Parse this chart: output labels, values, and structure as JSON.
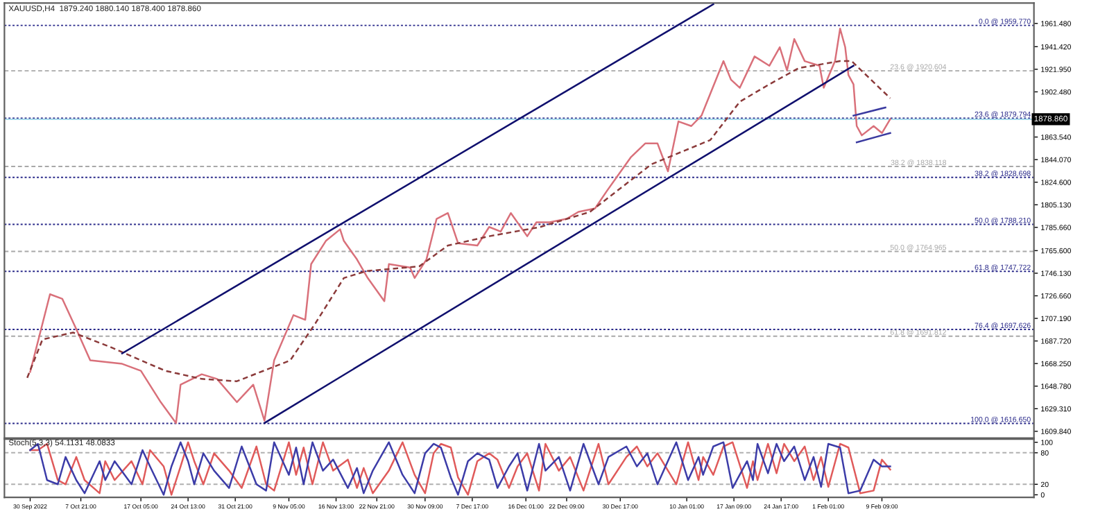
{
  "chart_data": [
    {
      "type": "line",
      "title": "XAUUSD,H4  1879.240 1880.140 1878.400 1878.860",
      "xlim": [
        "2022-09-26T00:00",
        "2023-03-05T00:00"
      ],
      "ylim": [
        1604,
        1979
      ],
      "tick_labels": "y",
      "yticks": [
        {
          "value": 1961.48,
          "label": "1961.480"
        },
        {
          "value": 1941.42,
          "label": "1941.420"
        },
        {
          "value": 1921.95,
          "label": "1921.950"
        },
        {
          "value": 1902.48,
          "label": "1902.480"
        },
        {
          "value": 1863.54,
          "label": "1863.540"
        },
        {
          "value": 1844.07,
          "label": "1844.070"
        },
        {
          "value": 1824.6,
          "label": "1824.600"
        },
        {
          "value": 1805.13,
          "label": "1805.130"
        },
        {
          "value": 1785.66,
          "label": "1785.660"
        },
        {
          "value": 1765.6,
          "label": "1765.600"
        },
        {
          "value": 1746.13,
          "label": "1746.130"
        },
        {
          "value": 1726.66,
          "label": "1726.660"
        },
        {
          "value": 1707.19,
          "label": "1707.190"
        },
        {
          "value": 1687.72,
          "label": "1687.720"
        },
        {
          "value": 1668.25,
          "label": "1668.250"
        },
        {
          "value": 1648.78,
          "label": "1648.780"
        },
        {
          "value": 1629.31,
          "label": "1629.310"
        },
        {
          "value": 1609.84,
          "label": "1609.840"
        }
      ],
      "series": [
        {
          "color": "#d9707a",
          "x": [
            "2022-09-30T00:00",
            "2022-10-03T02:00",
            "2022-10-05T00:00",
            "2022-10-07T04:00",
            "2022-10-09T08:00",
            "2022-10-14T07:00",
            "2022-10-17T05:00",
            "2022-10-20T07:00",
            "2022-10-22T16:00",
            "2022-10-23T09:00",
            "2022-10-26T16:00",
            "2022-10-29T01:00",
            "2022-11-01T03:00",
            "2022-11-03T16:00",
            "2022-11-05T10:00",
            "2022-11-06T22:00",
            "2022-11-09T22:00",
            "2022-11-11T18:00",
            "2022-11-12T16:00",
            "2022-11-14T23:00",
            "2022-11-17T04:00",
            "2022-11-17T18:00",
            "2022-11-19T19:00",
            "2022-11-21T11:00",
            "2022-11-24T01:00",
            "2022-11-24T18:00",
            "2022-11-28T01:00",
            "2022-11-28T18:00",
            "2022-11-30T14:00",
            "2022-12-02T04:00",
            "2022-12-03T22:00",
            "2022-12-05T12:00",
            "2022-12-08T12:00",
            "2022-12-10T08:00",
            "2022-12-12T03:00",
            "2022-12-13T17:00",
            "2022-12-16T06:00",
            "2022-12-17T16:00",
            "2022-12-19T17:00",
            "2022-12-22T09:00",
            "2022-12-24T05:00",
            "2022-12-26T19:00",
            "2022-12-28T15:00",
            "2023-01-01T08:00",
            "2023-01-03T14:00",
            "2023-01-05T12:00",
            "2023-01-07T03:00",
            "2023-01-08T18:00",
            "2023-01-10T18:00",
            "2023-01-12T08:00",
            "2023-01-13T17:00",
            "2023-01-15T18:00",
            "2023-01-16T22:00",
            "2023-01-18T07:00",
            "2023-01-20T14:00",
            "2023-01-22T21:00",
            "2023-01-24T12:00",
            "2023-01-25T15:00",
            "2023-01-26T18:00",
            "2023-01-28T09:00",
            "2023-01-30T16:00",
            "2023-01-31T08:00",
            "2023-02-02T02:00",
            "2023-02-02T21:00",
            "2023-02-03T16:00",
            "2023-02-04T04:00",
            "2023-02-04T23:00",
            "2023-02-05T11:00",
            "2023-02-06T06:00",
            "2023-02-08T02:00",
            "2023-02-09T09:00",
            "2023-02-10T16:00"
          ],
          "values": [
            1661,
            1728,
            1724,
            1698,
            1671,
            1668,
            1662,
            1635,
            1617,
            1650,
            1659,
            1655,
            1635,
            1650,
            1619,
            1671,
            1710,
            1706,
            1754,
            1774,
            1784,
            1774,
            1758,
            1742,
            1722,
            1754,
            1751,
            1742,
            1758,
            1793,
            1798,
            1772,
            1770,
            1786,
            1782,
            1798,
            1778,
            1790,
            1790,
            1793,
            1799,
            1802,
            1817,
            1846,
            1858,
            1858,
            1834,
            1877,
            1873,
            1882,
            1901,
            1929,
            1913,
            1906,
            1933,
            1925,
            1941,
            1921,
            1948,
            1929,
            1925,
            1906,
            1929,
            1957,
            1941,
            1917,
            1909,
            1873,
            1865,
            1873,
            1867,
            1879
          ]
        },
        {
          "color": "#8b3a3a",
          "line_style": "dashed",
          "x": [
            "2022-09-29T13:00",
            "2022-10-01T22:00",
            "2022-10-06T16:00",
            "2022-10-12T06:00",
            "2022-10-21T00:00",
            "2022-10-26T16:00",
            "2022-11-01T03:00",
            "2022-11-09T10:00",
            "2022-11-13T08:00",
            "2022-11-17T18:00",
            "2022-11-21T06:00",
            "2022-11-29T11:00",
            "2022-12-03T22:00",
            "2022-12-10T08:00",
            "2022-12-18T07:00",
            "2022-12-26T00:00",
            "2023-01-04T13:00",
            "2023-01-13T17:00",
            "2023-01-18T07:00",
            "2023-01-22T21:00",
            "2023-01-27T11:00",
            "2023-02-02T21:00",
            "2023-02-04T16:00",
            "2023-02-10T16:00"
          ],
          "values": [
            1656,
            1689,
            1695,
            1683,
            1662,
            1655,
            1653,
            1671,
            1703,
            1742,
            1748,
            1752,
            1770,
            1778,
            1786,
            1799,
            1840,
            1861,
            1894,
            1909,
            1923,
            1929,
            1929,
            1897
          ]
        },
        {
          "color": "#10106e",
          "x": [
            "2022-10-14T07:00",
            "2023-01-14T04:00"
          ],
          "values": [
            1677,
            1978
          ]
        },
        {
          "color": "#10106e",
          "x": [
            "2022-11-05T10:00",
            "2023-02-04T23:00"
          ],
          "values": [
            1617,
            1925
          ]
        },
        {
          "color": "#3a3aa0",
          "x": [
            "2023-02-04T23:00",
            "2023-02-09T22:00"
          ],
          "values": [
            1882,
            1889
          ]
        },
        {
          "color": "#3a3aa0",
          "x": [
            "2023-02-05T11:00",
            "2023-02-10T16:00"
          ],
          "values": [
            1859,
            1867
          ]
        }
      ],
      "ref_lines": [
        {
          "axis": "y",
          "value": 1959.77,
          "label": "0.0 @ 1959.770",
          "color": "#2a2a8a",
          "line_style": "dotted"
        },
        {
          "axis": "y",
          "value": 1879.794,
          "label": "23.6 @ 1879.794",
          "color": "#2a2a8a",
          "line_style": "dotted"
        },
        {
          "axis": "y",
          "value": 1828.698,
          "label": "38.2 @ 1828.698",
          "color": "#2a2a8a",
          "line_style": "dotted"
        },
        {
          "axis": "y",
          "value": 1788.21,
          "label": "50.0 @ 1788.210",
          "color": "#2a2a8a",
          "line_style": "dotted"
        },
        {
          "axis": "y",
          "value": 1747.722,
          "label": "61.8 @ 1747.722",
          "color": "#2a2a8a",
          "line_style": "dotted"
        },
        {
          "axis": "y",
          "value": 1697.626,
          "label": "76.4 @ 1697.626",
          "color": "#2a2a8a",
          "line_style": "dotted"
        },
        {
          "axis": "y",
          "value": 1616.65,
          "label": "100.0 @ 1616.650",
          "color": "#2a2a8a",
          "line_style": "dotted"
        },
        {
          "axis": "y",
          "value": 1920.604,
          "label": "23.6 @ 1920.604",
          "color": "#a8a8a8",
          "line_style": "dashed"
        },
        {
          "axis": "y",
          "value": 1838.118,
          "label": "38.2 @ 1838.118",
          "color": "#a8a8a8",
          "line_style": "dashed"
        },
        {
          "axis": "y",
          "value": 1764.965,
          "label": "50.0 @ 1764.965",
          "color": "#a8a8a8",
          "line_style": "dashed"
        },
        {
          "axis": "y",
          "value": 1691.812,
          "label": "61.8 @ 1691.812",
          "color": "#a8a8a8",
          "line_style": "dashed"
        },
        {
          "axis": "y",
          "value": 1878.86,
          "label": "1878.860",
          "color": "#a6d8ea",
          "line_style": "solid"
        }
      ]
    },
    {
      "type": "line",
      "title": "Stoch(5,3,3) 54.1131 48.0833",
      "xlim": [
        "2022-09-26T00:00",
        "2023-03-05T00:00"
      ],
      "ylim": [
        -5,
        106
      ],
      "yticks": [
        0,
        20,
        80,
        100
      ],
      "xticks": [
        {
          "value": "2022-09-30T00:00",
          "label": "30 Sep 2022"
        },
        {
          "value": "2022-10-07T21:00",
          "label": "7 Oct 21:00"
        },
        {
          "value": "2022-10-17T05:00",
          "label": "17 Oct 05:00"
        },
        {
          "value": "2022-10-24T13:00",
          "label": "24 Oct 13:00"
        },
        {
          "value": "2022-10-31T21:00",
          "label": "31 Oct 21:00"
        },
        {
          "value": "2022-11-09T05:00",
          "label": "9 Nov 05:00"
        },
        {
          "value": "2022-11-16T13:00",
          "label": "16 Nov 13:00"
        },
        {
          "value": "2022-11-22T21:00",
          "label": "22 Nov 21:00"
        },
        {
          "value": "2022-11-30T09:00",
          "label": "30 Nov 09:00"
        },
        {
          "value": "2022-12-07T17:00",
          "label": "7 Dec 17:00"
        },
        {
          "value": "2022-12-16T01:00",
          "label": "16 Dec 01:00"
        },
        {
          "value": "2022-12-22T09:00",
          "label": "22 Dec 09:00"
        },
        {
          "value": "2022-12-30T17:00",
          "label": "30 Dec 17:00"
        },
        {
          "value": "2023-01-10T01:00",
          "label": "10 Jan 01:00"
        },
        {
          "value": "2023-01-17T09:00",
          "label": "17 Jan 09:00"
        },
        {
          "value": "2023-01-24T17:00",
          "label": "24 Jan 17:00"
        },
        {
          "value": "2023-02-01T01:00",
          "label": "1 Feb 01:00"
        },
        {
          "value": "2023-02-09T09:00",
          "label": "9 Feb 09:00"
        }
      ],
      "x": [
        "2022-09-30T00:00",
        "2022-10-01T05:00",
        "2022-10-02T15:00",
        "2022-10-04T07:00",
        "2022-10-05T12:00",
        "2022-10-07T04:00",
        "2022-10-08T11:00",
        "2022-10-10T19:00",
        "2022-10-11T16:00",
        "2022-10-13T03:00",
        "2022-10-15T18:00",
        "2022-10-17T11:00",
        "2022-10-18T15:00",
        "2022-10-20T18:00",
        "2022-10-21T23:00",
        "2022-10-23T09:00",
        "2022-10-24T13:00",
        "2022-10-25T12:00",
        "2022-10-26T22:00",
        "2022-10-28T14:00",
        "2022-10-30T22:00",
        "2022-11-01T21:00",
        "2022-11-04T04:00",
        "2022-11-05T16:00",
        "2022-11-06T22:00",
        "2022-11-09T05:00",
        "2022-11-10T08:00",
        "2022-11-11T12:00",
        "2022-11-12T21:00",
        "2022-11-14T12:00",
        "2022-11-16T02:00",
        "2022-11-18T09:00",
        "2022-11-19T19:00",
        "2022-11-20T20:00",
        "2022-11-22T06:00",
        "2022-11-24T18:00",
        "2022-11-26T21:00",
        "2022-11-28T18:00",
        "2022-11-30T09:00",
        "2022-12-01T17:00",
        "2022-12-02T20:00",
        "2022-12-04T09:00",
        "2022-12-05T12:00",
        "2022-12-07T01:00",
        "2022-12-08T12:00",
        "2022-12-10T08:00",
        "2022-12-11T15:00",
        "2022-12-13T10:00",
        "2022-12-14T18:00",
        "2022-12-16T06:00",
        "2022-12-18T02:00",
        "2022-12-19T02:00",
        "2022-12-21T04:00",
        "2022-12-22T22:00",
        "2022-12-25T00:00",
        "2022-12-27T08:00",
        "2022-12-28T21:00",
        "2022-12-31T16:00",
        "2023-01-02T07:00",
        "2023-01-03T22:00",
        "2023-01-05T12:00",
        "2023-01-08T10:00",
        "2023-01-10T06:00",
        "2023-01-11T21:00",
        "2023-01-12T14:00",
        "2023-01-14T04:00",
        "2023-01-15T18:00",
        "2023-01-17T04:00",
        "2023-01-19T10:00",
        "2023-01-20T08:00",
        "2023-01-21T01:00",
        "2023-01-22T16:00",
        "2023-01-24T00:00",
        "2023-01-25T04:00",
        "2023-01-26T18:00",
        "2023-01-28T09:00",
        "2023-01-29T18:00",
        "2023-01-30T22:00",
        "2023-02-01T01:00",
        "2023-02-02T21:00",
        "2023-02-04T04:00",
        "2023-02-06T00:00",
        "2023-02-08T02:00",
        "2023-02-09T09:00",
        "2023-02-10T16:00"
      ],
      "series": [
        {
          "color": "#e05a5a",
          "values": [
            85,
            85,
            97,
            28,
            20,
            72,
            28,
            3,
            64,
            28,
            64,
            20,
            85,
            54,
            0,
            54,
            100,
            64,
            20,
            79,
            46,
            13,
            92,
            20,
            8,
            100,
            38,
            90,
            20,
            100,
            46,
            67,
            13,
            51,
            3,
            46,
            100,
            38,
            3,
            79,
            97,
            90,
            33,
            0,
            64,
            79,
            67,
            13,
            54,
            79,
            8,
            97,
            46,
            72,
            8,
            97,
            20,
            72,
            92,
            54,
            79,
            20,
            100,
            28,
            72,
            38,
            92,
            100,
            13,
            64,
            28,
            97,
            41,
            97,
            64,
            92,
            28,
            72,
            15,
            97,
            90,
            3,
            8,
            67,
            48
          ]
        },
        {
          "color": "#3c3ca8",
          "values": [
            85,
            97,
            28,
            20,
            72,
            28,
            3,
            64,
            28,
            64,
            20,
            85,
            54,
            0,
            54,
            100,
            64,
            20,
            79,
            46,
            13,
            92,
            20,
            8,
            100,
            38,
            90,
            20,
            100,
            46,
            67,
            13,
            51,
            3,
            46,
            100,
            38,
            3,
            79,
            97,
            90,
            33,
            0,
            64,
            79,
            67,
            13,
            54,
            79,
            8,
            97,
            46,
            72,
            8,
            97,
            20,
            72,
            92,
            54,
            79,
            20,
            100,
            28,
            72,
            38,
            92,
            100,
            13,
            64,
            28,
            97,
            41,
            97,
            64,
            92,
            28,
            72,
            15,
            97,
            90,
            3,
            8,
            67,
            54,
            54
          ]
        }
      ],
      "ref_lines": [
        {
          "axis": "y",
          "value": 80,
          "color": "#b0b0b0",
          "line_style": "dashed"
        },
        {
          "axis": "y",
          "value": 20,
          "color": "#b0b0b0",
          "line_style": "dashed"
        }
      ]
    }
  ]
}
